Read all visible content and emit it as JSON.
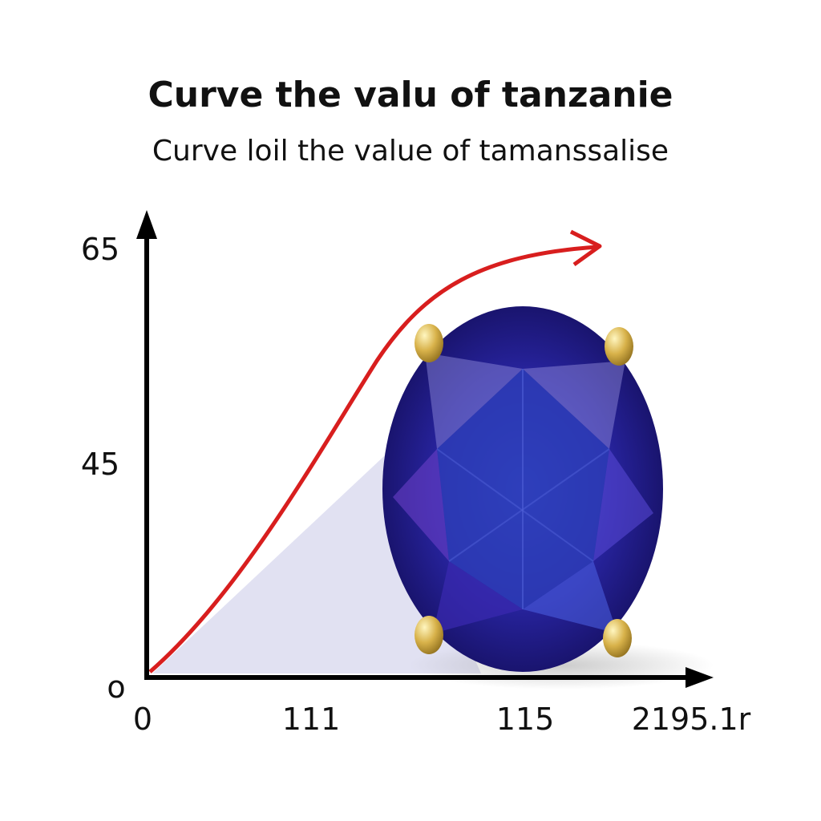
{
  "header": {
    "title": "Curve the valu of tanzanie",
    "subtitle": "Curve loil the value of tamanssalise"
  },
  "axes": {
    "origin": "o",
    "y_labels": [
      "65",
      "45"
    ],
    "x_labels": [
      "0",
      "111",
      "115",
      "2195.1r"
    ]
  }
}
